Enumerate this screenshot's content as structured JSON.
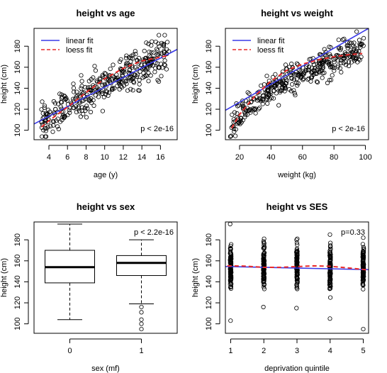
{
  "chart_data": [
    {
      "id": "age",
      "type": "scatter",
      "title": "height vs age",
      "xlabel": "age (y)",
      "ylabel": "height (cm)",
      "xlim": [
        2.4,
        17.8
      ],
      "ylim": [
        91,
        197
      ],
      "xticks": [
        4,
        6,
        8,
        10,
        12,
        14,
        16
      ],
      "yticks": [
        100,
        120,
        140,
        160,
        180
      ],
      "annotation": "p < 2e-16",
      "legend": {
        "position": "top-left",
        "entries": [
          {
            "label": "linear fit",
            "color": "#3a3ae8",
            "dash": false
          },
          {
            "label": "loess fit",
            "color": "#e82a2a",
            "dash": true
          }
        ]
      },
      "linear_fit": {
        "x": [
          2.4,
          17.8
        ],
        "y": [
          106,
          177
        ]
      },
      "loess_fit": {
        "x": [
          3.2,
          4,
          6,
          8,
          10,
          12,
          14,
          16.8
        ],
        "y": [
          103,
          109,
          122,
          136,
          149,
          159,
          166,
          171
        ]
      },
      "points": {
        "x_range": [
          3.2,
          16.9
        ],
        "y_at_xmin": 106,
        "y_at_xmax": 172,
        "y_spread": 12,
        "n": 380
      }
    },
    {
      "id": "weight",
      "type": "scatter",
      "title": "height vs weight",
      "xlabel": "weight (kg)",
      "ylabel": "height (cm)",
      "xlim": [
        11,
        102
      ],
      "ylim": [
        91,
        197
      ],
      "xticks": [
        20,
        40,
        60,
        80,
        100
      ],
      "yticks": [
        100,
        120,
        140,
        160,
        180
      ],
      "annotation": "p < 2e-16",
      "legend": {
        "position": "top-left",
        "entries": [
          {
            "label": "linear fit",
            "color": "#3a3ae8",
            "dash": false
          },
          {
            "label": "loess fit",
            "color": "#e82a2a",
            "dash": true
          }
        ]
      },
      "linear_fit": {
        "x": [
          11,
          102
        ],
        "y": [
          119,
          197
        ]
      },
      "loess_fit": {
        "x": [
          15,
          20,
          30,
          40,
          50,
          60,
          70,
          80,
          90,
          98
        ],
        "y": [
          102,
          115,
          133,
          147,
          157,
          163,
          167,
          170,
          172,
          173
        ]
      },
      "points": {
        "x_range": [
          14,
          99
        ],
        "y_at_xmin": 100,
        "y_at_xmax": 178,
        "y_spread": 10,
        "n": 380
      }
    },
    {
      "id": "sex",
      "type": "box",
      "title": "height vs sex",
      "xlabel": "sex (mf)",
      "ylabel": "height (cm)",
      "categories": [
        "0",
        "1"
      ],
      "ylim": [
        91,
        197
      ],
      "yticks": [
        100,
        120,
        140,
        160,
        180
      ],
      "annotation": "p < 2.2e-16",
      "boxes": [
        {
          "category": "0",
          "whisker_low": 104,
          "q1": 139,
          "median": 154,
          "q3": 170,
          "whisker_high": 195,
          "outliers": []
        },
        {
          "category": "1",
          "whisker_low": 119,
          "q1": 146,
          "median": 158,
          "q3": 165,
          "whisker_high": 180,
          "outliers": [
            116,
            111,
            104,
            100,
            95
          ]
        }
      ]
    },
    {
      "id": "ses",
      "type": "scatter",
      "title": "height vs SES",
      "xlabel": "deprivation quintile",
      "ylabel": "height (cm)",
      "xlim": [
        0.84,
        5.16
      ],
      "ylim": [
        91,
        197
      ],
      "xticks": [
        1,
        2,
        3,
        4,
        5
      ],
      "yticks": [
        100,
        120,
        140,
        160,
        180
      ],
      "annotation": "p=0.33",
      "linear_fit": {
        "x": [
          0.84,
          5.16
        ],
        "y": [
          154.6,
          151.6
        ]
      },
      "loess_fit": {
        "x": [
          0.9,
          1.4,
          2,
          2.5,
          3,
          3.5,
          4,
          4.5,
          5.1
        ],
        "y": [
          155.2,
          155,
          153.8,
          153.8,
          154.5,
          155.2,
          154.8,
          153.4,
          151.5
        ]
      },
      "groups": [
        {
          "x": 1,
          "min": 103,
          "max": 195
        },
        {
          "x": 2,
          "min": 116,
          "max": 181
        },
        {
          "x": 3,
          "min": 115,
          "max": 181
        },
        {
          "x": 4,
          "min": 105,
          "max": 185
        },
        {
          "x": 5,
          "min": 95,
          "max": 182
        }
      ]
    }
  ]
}
